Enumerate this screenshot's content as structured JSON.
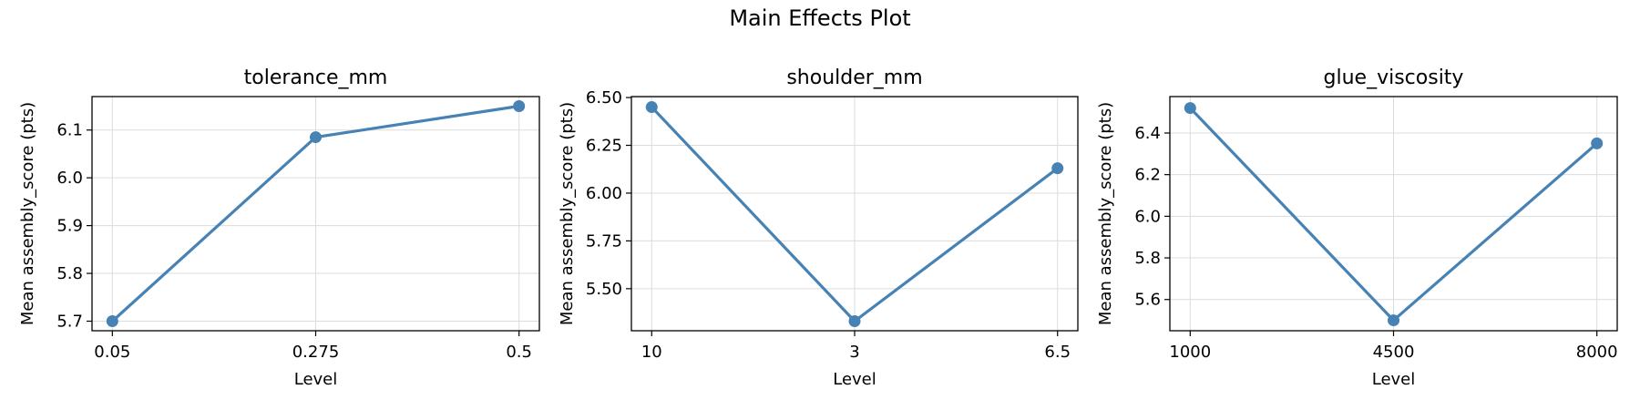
{
  "figure": {
    "title": "Main Effects Plot"
  },
  "colors": {
    "series": "#4682b4",
    "grid": "#dcdcdc"
  },
  "chart_data": [
    {
      "type": "line",
      "title": "tolerance_mm",
      "xlabel": "Level",
      "ylabel": "Mean assembly_score (pts)",
      "categories": [
        "0.05",
        "0.275",
        "0.5"
      ],
      "values": [
        5.7,
        6.085,
        6.15
      ],
      "ylim": [
        5.68,
        6.17
      ],
      "yticks": [
        5.7,
        5.8,
        5.9,
        6.0,
        6.1
      ],
      "ytick_labels": [
        "5.7",
        "5.8",
        "5.9",
        "6.0",
        "6.1"
      ],
      "grid": true
    },
    {
      "type": "line",
      "title": "shoulder_mm",
      "xlabel": "Level",
      "ylabel": "Mean assembly_score (pts)",
      "categories": [
        "10",
        "3",
        "6.5"
      ],
      "values": [
        6.45,
        5.33,
        6.13
      ],
      "ylim": [
        5.28,
        6.505
      ],
      "yticks": [
        5.5,
        5.75,
        6.0,
        6.25,
        6.5
      ],
      "ytick_labels": [
        "5.50",
        "5.75",
        "6.00",
        "6.25",
        "6.50"
      ],
      "grid": true
    },
    {
      "type": "line",
      "title": "glue_viscosity",
      "xlabel": "Level",
      "ylabel": "Mean assembly_score (pts)",
      "categories": [
        "1000",
        "4500",
        "8000"
      ],
      "values": [
        6.52,
        5.5,
        6.35
      ],
      "ylim": [
        5.45,
        6.575
      ],
      "yticks": [
        5.6,
        5.8,
        6.0,
        6.2,
        6.4
      ],
      "ytick_labels": [
        "5.6",
        "5.8",
        "6.0",
        "6.2",
        "6.4"
      ],
      "grid": true
    }
  ]
}
